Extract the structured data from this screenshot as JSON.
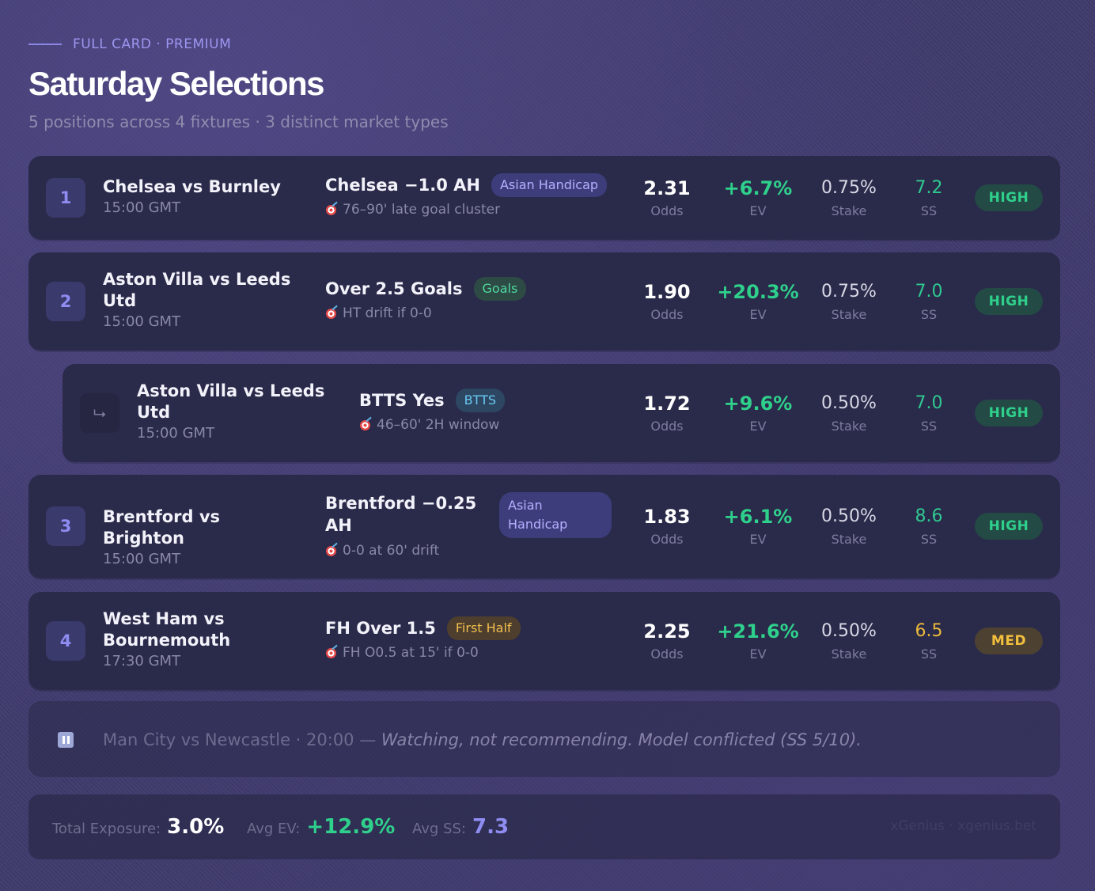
{
  "header": {
    "eyebrow": "FULL CARD · PREMIUM",
    "title": "Saturday Selections",
    "subtitle": "5 positions across 4 fixtures · 3 distinct market types"
  },
  "labels": {
    "odds": "Odds",
    "ev": "EV",
    "stake": "Stake",
    "ss": "SS"
  },
  "selections": [
    {
      "num": "1",
      "fixture": "Chelsea vs Burnley",
      "time": "15:00 GMT",
      "market": "Chelsea −1.0 AH",
      "badge": "Asian Handicap",
      "note": "76–90' late goal cluster",
      "odds": "2.31",
      "ev": "+6.7%",
      "stake": "0.75%",
      "ss": "7.2",
      "confidence": "HIGH"
    },
    {
      "num": "2",
      "fixture": "Aston Villa vs Leeds Utd",
      "time": "15:00 GMT",
      "market": "Over 2.5 Goals",
      "badge": "Goals",
      "note": "HT drift if 0-0",
      "odds": "1.90",
      "ev": "+20.3%",
      "stake": "0.75%",
      "ss": "7.0",
      "confidence": "HIGH"
    },
    {
      "num": "⮡",
      "fixture": "Aston Villa vs Leeds Utd",
      "time": "15:00 GMT",
      "market": "BTTS Yes",
      "badge": "BTTS",
      "note": "46–60' 2H window",
      "odds": "1.72",
      "ev": "+9.6%",
      "stake": "0.50%",
      "ss": "7.0",
      "confidence": "HIGH"
    },
    {
      "num": "3",
      "fixture": "Brentford vs Brighton",
      "time": "15:00 GMT",
      "market": "Brentford −0.25 AH",
      "badge": "Asian Handicap",
      "note": "0-0 at 60' drift",
      "odds": "1.83",
      "ev": "+6.1%",
      "stake": "0.50%",
      "ss": "8.6",
      "confidence": "HIGH"
    },
    {
      "num": "4",
      "fixture": "West Ham vs Bournemouth",
      "time": "17:30 GMT",
      "market": "FH Over 1.5",
      "badge": "First Half",
      "note": "FH O0.5 at 15' if 0-0",
      "odds": "2.25",
      "ev": "+21.6%",
      "stake": "0.50%",
      "ss": "6.5",
      "confidence": "MED"
    }
  ],
  "watchlist": {
    "fixture": "Man City vs Newcastle · 20:00 — ",
    "note": "Watching, not recommending. Model conflicted (SS 5/10)."
  },
  "footer": {
    "exposure_label": "Total Exposure:",
    "exposure": "3.0%",
    "ev_label": "Avg EV:",
    "ev": "+12.9%",
    "ss_label": "Avg SS:",
    "ss": "7.3",
    "brand": "xGenius · xgenius.bet"
  },
  "colors": {
    "accent": "#8e86e8",
    "positive": "#2fd08c",
    "amber": "#eab93a",
    "card": "#2a2a4a"
  }
}
